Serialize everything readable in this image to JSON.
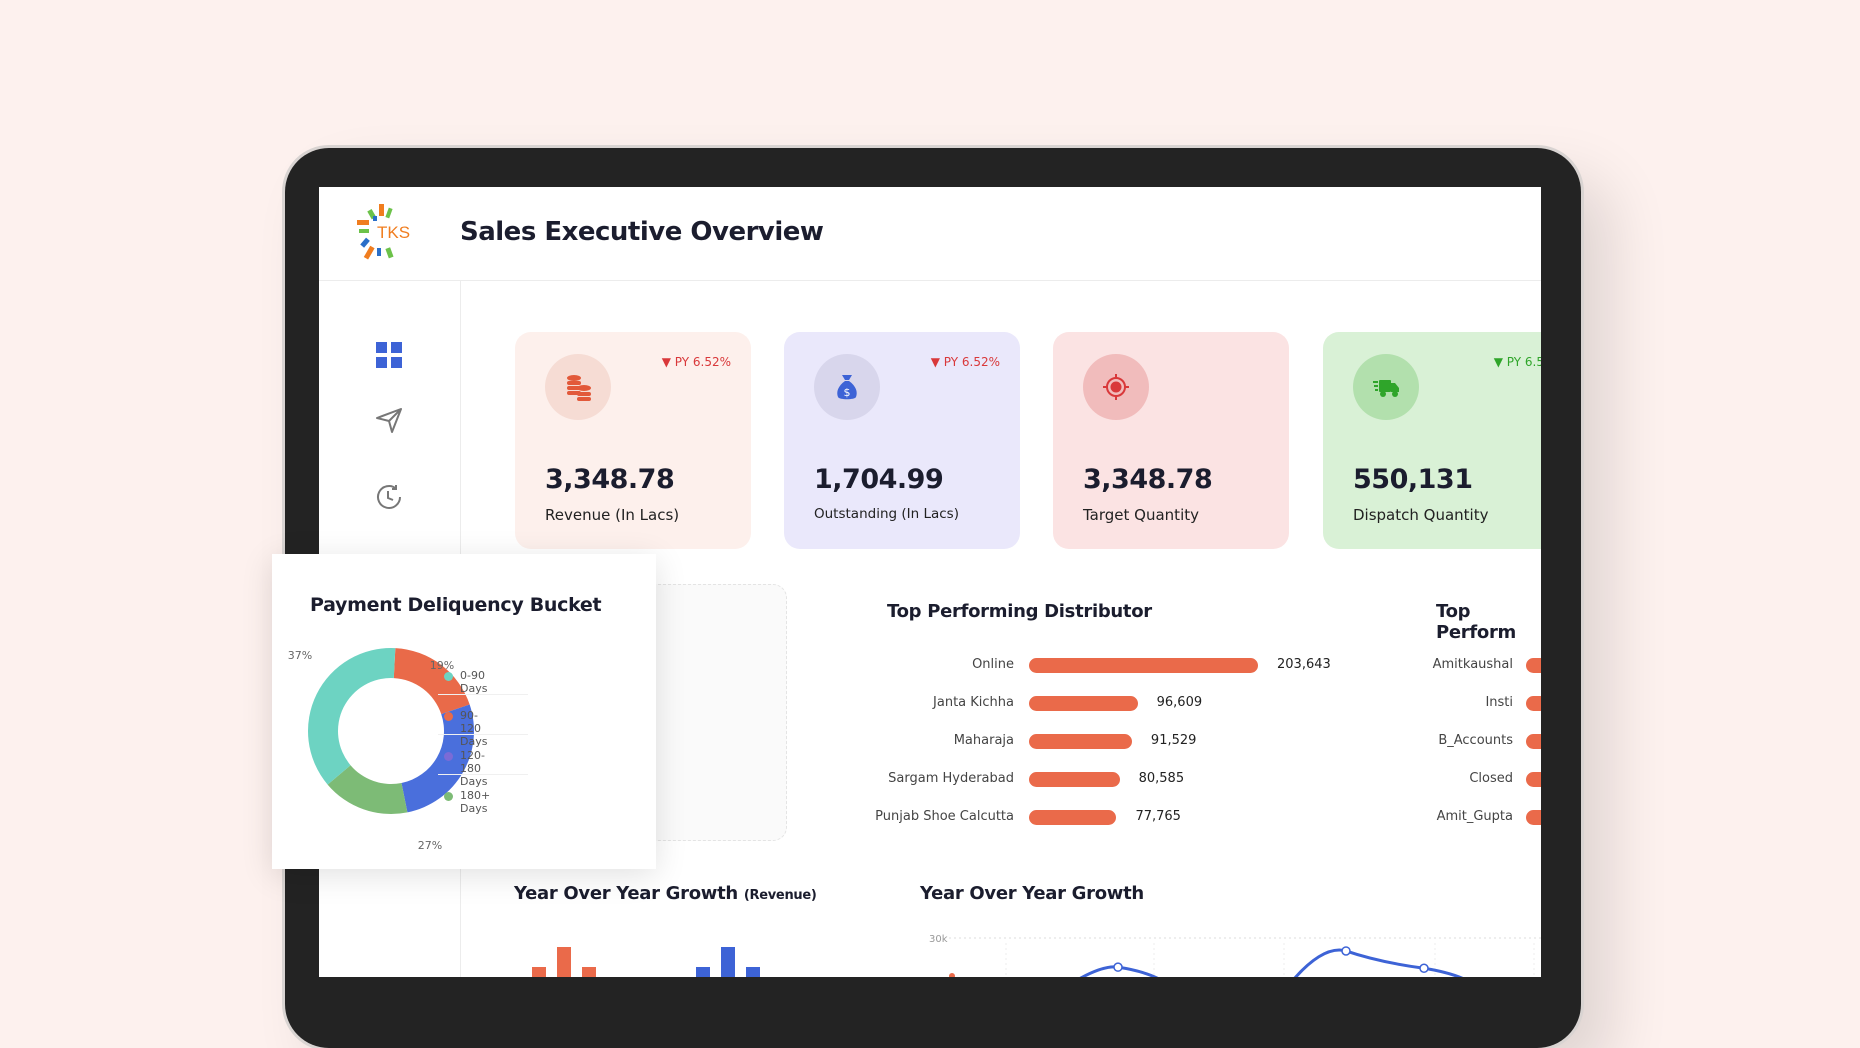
{
  "header": {
    "logo_text": "TKS",
    "title": "Sales Executive Overview"
  },
  "sidebar": {
    "items": [
      {
        "icon": "grid-icon",
        "active": true
      },
      {
        "icon": "send-icon"
      },
      {
        "icon": "history-icon"
      }
    ]
  },
  "cards": [
    {
      "value": "3,348.78",
      "label": "Revenue (In Lacs)",
      "py": "▼ PY 6.52%",
      "py_color": "#d9383a",
      "bg": "#fdf0ec",
      "icon_bg": "#f6dcd4",
      "icon": "coins-icon",
      "icon_color": "#e2593a"
    },
    {
      "value": "1,704.99",
      "label": "Outstanding (In Lacs)",
      "py": "▼ PY 6.52%",
      "py_color": "#d9383a",
      "bg": "#eae8fb",
      "icon_bg": "#d8d6ec",
      "icon": "money-bag-icon",
      "icon_color": "#3d63d6"
    },
    {
      "value": "3,348.78",
      "label": "Target Quantity",
      "py": "",
      "py_color": "#d9383a",
      "bg": "#fbe3e3",
      "icon_bg": "#f1bcbc",
      "icon": "target-icon",
      "icon_color": "#d9383a"
    },
    {
      "value": "550,131",
      "label": "Dispatch Quantity",
      "py": "▼ PY 6.52%",
      "py_color": "#2fa52a",
      "bg": "#d9f1d6",
      "icon_bg": "#b2e0ad",
      "icon": "truck-icon",
      "icon_color": "#2fa52a"
    }
  ],
  "delinquency": {
    "title": "Payment Deliquency Bucket",
    "chart_data": {
      "type": "pie",
      "donut": true,
      "slices": [
        {
          "name": "0-90 Days",
          "value": 37,
          "label": "37%",
          "color": "#6dd3c2",
          "dot": "#6dd3c2"
        },
        {
          "name": "90-120 Days",
          "value": 19,
          "label": "19%",
          "color": "#e96a49",
          "dot": "#e96a49"
        },
        {
          "name": "120-180 Days",
          "value": 27,
          "label": "27%",
          "color": "#4a6fdc",
          "dot": "#7b6bd6"
        },
        {
          "name": "180+ Days",
          "value": 17,
          "label": "17%",
          "color": "#7dbb76",
          "dot": "#7dbb76"
        }
      ],
      "legend": "right"
    }
  },
  "distributor": {
    "title": "Top Performing Distributor",
    "chart_data": {
      "type": "bar",
      "orientation": "horizontal",
      "categories": [
        "Online",
        "Janta Kichha",
        "Maharaja",
        "Sargam Hyderabad",
        "Punjab Shoe Calcutta"
      ],
      "values": [
        203643,
        96609,
        91529,
        80585,
        77765
      ],
      "labels": [
        "203,643",
        "96,609",
        "91,529",
        "80,585",
        "77,765"
      ],
      "color": "#ea6a4a"
    }
  },
  "performer": {
    "title": "Top Perform",
    "categories": [
      "Amitkaushal",
      "Insti",
      "B_Accounts",
      "Closed",
      "Amit_Gupta"
    ]
  },
  "yoy_revenue": {
    "title": "Year Over Year Growth",
    "subtitle": "(Revenue)",
    "chart_data": {
      "type": "bar",
      "series": [
        {
          "color": "#ea6a4a",
          "values": [
            1,
            3,
            1
          ]
        },
        {
          "color": "#3d63d6",
          "values": [
            1,
            3,
            1
          ]
        }
      ]
    }
  },
  "yoy": {
    "title": "Year Over Year Growth",
    "chart_data": {
      "type": "line",
      "y_tick": "30k",
      "ylim_top": 30000,
      "grid": true,
      "color": "#3d63d6",
      "points": [
        24600,
        27600,
        24400
      ]
    }
  }
}
